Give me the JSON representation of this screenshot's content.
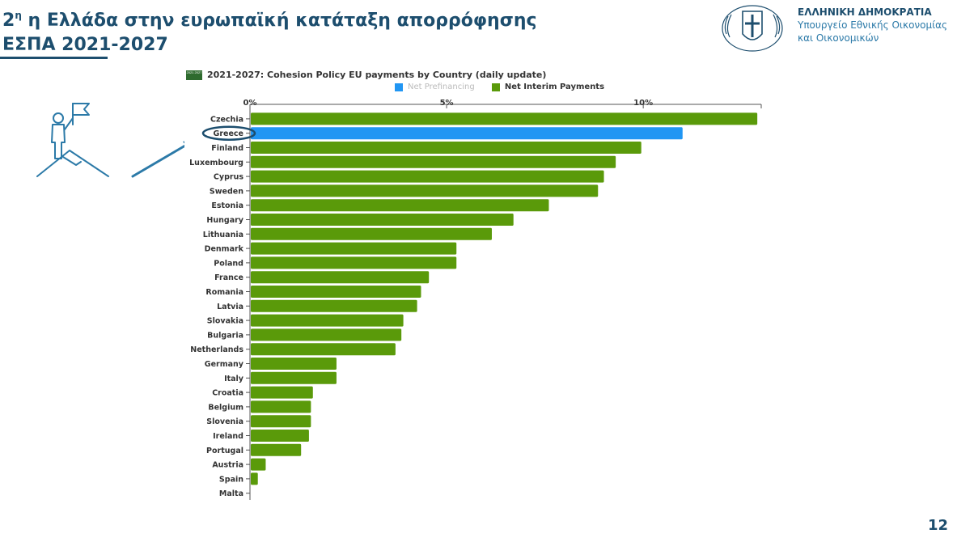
{
  "slide": {
    "title_lead": "2",
    "title_sup": "η",
    "title_rest": " η Ελλάδα στην ευρωπαϊκή κατάταξη απορρόφησης",
    "title_line2": "ΕΣΠΑ 2021-2027",
    "page_number": "12"
  },
  "header": {
    "republic": "ΕΛΛΗΝΙΚΗ ΔΗΜΟΚΡΑΤΙΑ",
    "ministry_line1": "Υπουργείο Εθνικής Οικονομίας",
    "ministry_line2": "και Οικονομικών"
  },
  "colors": {
    "title": "#1d4e6e",
    "interim": "#5a9a0a",
    "prefinancing": "#2196f3",
    "highlight_ellipse": "#1d4e6e"
  },
  "chart_data": {
    "type": "bar",
    "orientation": "horizontal",
    "title": "2021-2027: Cohesion Policy EU payments by Country (daily update)",
    "badge": "2021 2027",
    "x_unit": "%",
    "xlim": [
      0,
      13
    ],
    "x_ticks": [
      0,
      5,
      10
    ],
    "x_tick_labels": [
      "0%",
      "5%",
      "10%"
    ],
    "legend": [
      "Net Prefinancing",
      "Net Interim Payments"
    ],
    "legend_placement": "top",
    "highlight": "Greece",
    "categories": [
      "Czechia",
      "Greece",
      "Finland",
      "Luxembourg",
      "Cyprus",
      "Sweden",
      "Estonia",
      "Hungary",
      "Lithuania",
      "Denmark",
      "Poland",
      "France",
      "Romania",
      "Latvia",
      "Slovakia",
      "Bulgaria",
      "Netherlands",
      "Germany",
      "Italy",
      "Croatia",
      "Belgium",
      "Slovenia",
      "Ireland",
      "Portugal",
      "Austria",
      "Spain",
      "Malta"
    ],
    "series": [
      {
        "name": "Net Interim Payments",
        "values": [
          12.9,
          11.0,
          9.95,
          9.3,
          9.0,
          8.85,
          7.6,
          6.7,
          6.15,
          5.25,
          5.25,
          4.55,
          4.35,
          4.25,
          3.9,
          3.85,
          3.7,
          2.2,
          2.2,
          1.6,
          1.55,
          1.55,
          1.5,
          1.3,
          0.4,
          0.2,
          0
        ]
      }
    ]
  }
}
